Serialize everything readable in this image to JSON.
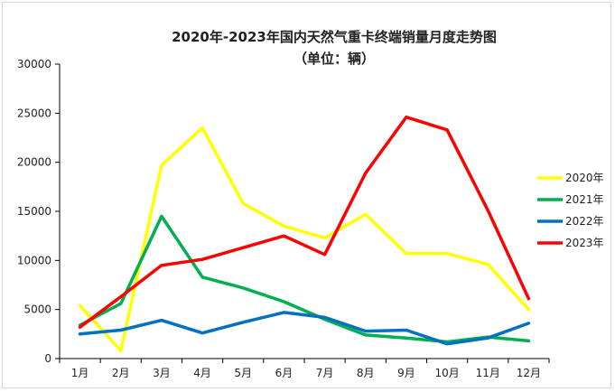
{
  "chart_data": {
    "type": "line",
    "title": "2020年-2023年国内天然气重卡终端销量月度走势图",
    "subtitle": "（单位：辆）",
    "xlabel": "",
    "ylabel": "",
    "categories": [
      "1月",
      "2月",
      "3月",
      "4月",
      "5月",
      "6月",
      "7月",
      "8月",
      "9月",
      "10月",
      "11月",
      "12月"
    ],
    "ylim": [
      0,
      30000
    ],
    "yticks": [
      0,
      5000,
      10000,
      15000,
      20000,
      25000,
      30000
    ],
    "grid": false,
    "legend_position": "right",
    "series": [
      {
        "name": "2020年",
        "color": "#ffff00",
        "values": [
          5400,
          800,
          19700,
          23500,
          15800,
          13500,
          12300,
          14700,
          10700,
          10700,
          9600,
          5000
        ]
      },
      {
        "name": "2021年",
        "color": "#00b050",
        "values": [
          3400,
          5600,
          14500,
          8300,
          7200,
          5800,
          4000,
          2400,
          2100,
          1700,
          2200,
          1800
        ]
      },
      {
        "name": "2022年",
        "color": "#0070c0",
        "values": [
          2500,
          2900,
          3900,
          2600,
          3700,
          4700,
          4200,
          2800,
          2900,
          1500,
          2100,
          3600
        ]
      },
      {
        "name": "2023年",
        "color": "#ff0000",
        "values": [
          3200,
          6300,
          9500,
          10100,
          11300,
          12500,
          10600,
          18900,
          24600,
          23300,
          15100,
          6100
        ]
      }
    ]
  }
}
